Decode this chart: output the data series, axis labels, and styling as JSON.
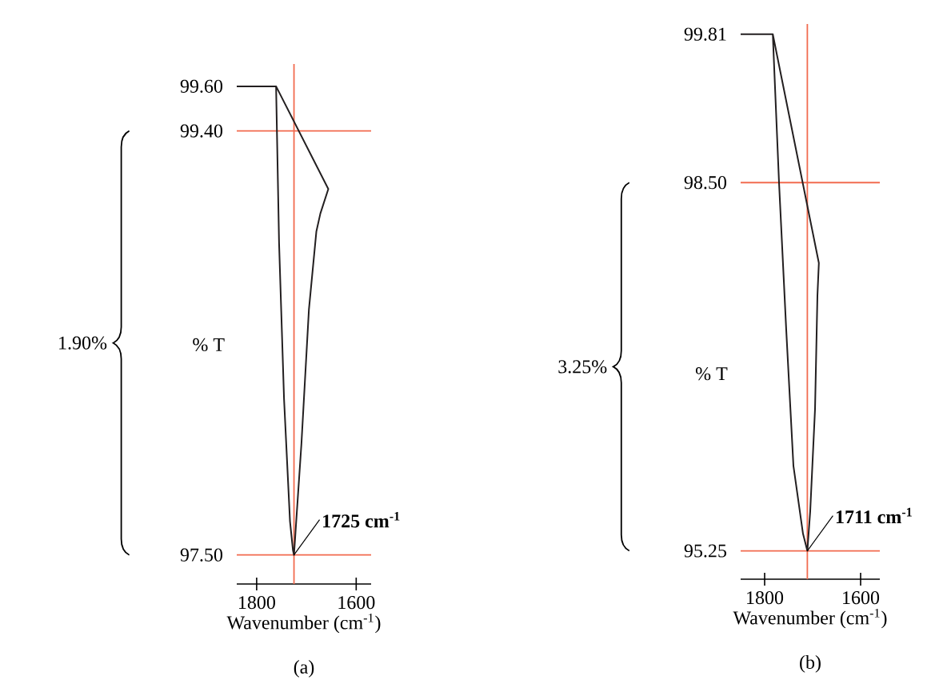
{
  "chart_data": [
    {
      "type": "line",
      "title": "(a)",
      "xlabel": "Wavenumber (cm$^{-1}$)",
      "ylabel": "% T",
      "xlim": [
        1840,
        1570
      ],
      "ylim": [
        97.37,
        99.7
      ],
      "xticks": [
        1800,
        1600
      ],
      "yticks": [
        {
          "value": 97.5,
          "label": "97.50"
        },
        {
          "value": 99.4,
          "label": "99.40"
        },
        {
          "value": 99.6,
          "label": "99.60"
        }
      ],
      "series": [
        {
          "color": "#231f20",
          "x": [
            1840,
            1761,
            1755,
            1745,
            1733,
            1727,
            1725,
            1722,
            1710,
            1695,
            1680,
            1672,
            1656,
            1761
          ],
          "values": [
            99.6,
            99.6,
            98.9,
            98.2,
            97.65,
            97.52,
            97.5,
            97.6,
            98.0,
            98.6,
            98.95,
            99.03,
            99.14,
            99.6
          ]
        }
      ],
      "ref_lines": [
        {
          "axis": "y",
          "value": 99.4,
          "color": "#f26b4f"
        },
        {
          "axis": "y",
          "value": 97.5,
          "color": "#f26b4f"
        },
        {
          "axis": "x",
          "value": 1725,
          "color": "#f26b4f"
        }
      ],
      "annotations": [
        "1.90%",
        {
          "text": "1725 cm$^{-1}$",
          "x": 1725,
          "y": 97.5
        }
      ]
    },
    {
      "type": "line",
      "title": "(b)",
      "xlabel": "Wavenumber (cm$^{-1}$)",
      "ylabel": "% T",
      "xlim": [
        1850,
        1560
      ],
      "ylim": [
        95.0,
        99.9
      ],
      "xticks": [
        1800,
        1600
      ],
      "yticks": [
        {
          "value": 95.25,
          "label": "95.25"
        },
        {
          "value": 98.5,
          "label": "98.50"
        },
        {
          "value": 99.81,
          "label": "99.81"
        }
      ],
      "series": [
        {
          "color": "#231f20",
          "x": [
            1850,
            1783,
            1770,
            1755,
            1740,
            1720,
            1711,
            1705,
            1695,
            1690,
            1687,
            1783
          ],
          "values": [
            99.81,
            99.81,
            98.5,
            97.2,
            96.0,
            95.4,
            95.25,
            95.6,
            96.5,
            97.5,
            97.79,
            99.81
          ]
        }
      ],
      "ref_lines": [
        {
          "axis": "y",
          "value": 98.5,
          "color": "#f26b4f"
        },
        {
          "axis": "y",
          "value": 95.25,
          "color": "#f26b4f"
        },
        {
          "axis": "x",
          "value": 1711,
          "color": "#f26b4f"
        }
      ],
      "annotations": [
        "3.25%",
        {
          "text": "1711 cm$^{-1}$",
          "x": 1711,
          "y": 95.25
        }
      ]
    }
  ]
}
